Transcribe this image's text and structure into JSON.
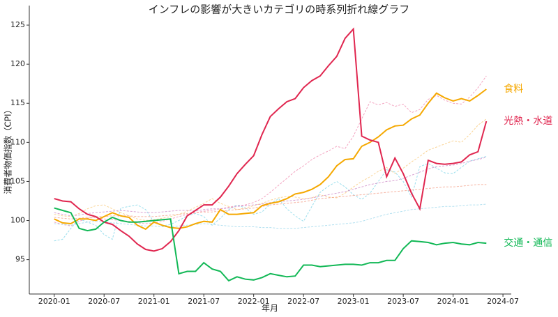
{
  "chart_data": {
    "type": "line",
    "title": "インフレの影響が大きいカテゴリの時系列折れ線グラフ",
    "x_label": "年月",
    "y_label": "消費者物価指数（CPI）",
    "x": [
      "2020-01",
      "2020-02",
      "2020-03",
      "2020-04",
      "2020-05",
      "2020-06",
      "2020-07",
      "2020-08",
      "2020-09",
      "2020-10",
      "2020-11",
      "2020-12",
      "2021-01",
      "2021-02",
      "2021-03",
      "2021-04",
      "2021-05",
      "2021-06",
      "2021-07",
      "2021-08",
      "2021-09",
      "2021-10",
      "2021-11",
      "2021-12",
      "2022-01",
      "2022-02",
      "2022-03",
      "2022-04",
      "2022-05",
      "2022-06",
      "2022-07",
      "2022-08",
      "2022-09",
      "2022-10",
      "2022-11",
      "2022-12",
      "2023-01",
      "2023-02",
      "2023-03",
      "2023-04",
      "2023-05",
      "2023-06",
      "2023-07",
      "2023-08",
      "2023-09",
      "2023-10",
      "2023-11",
      "2023-12",
      "2024-01",
      "2024-02",
      "2024-03",
      "2024-04",
      "2024-05"
    ],
    "xlim": [
      "2019-10",
      "2024-08"
    ],
    "xticks": [
      "2020-01",
      "2020-07",
      "2021-01",
      "2021-07",
      "2022-01",
      "2022-07",
      "2023-01",
      "2023-07",
      "2024-01",
      "2024-07"
    ],
    "ylim": [
      90.6,
      127.5
    ],
    "yticks": [
      95,
      100,
      105,
      110,
      115,
      120,
      125
    ],
    "series": [
      {
        "color": "#f08cb0",
        "style": "dashed",
        "values": [
          99.8,
          99.5,
          99.3,
          99.9,
          100.3,
          100.4,
          100.2,
          100.1,
          100.0,
          99.9,
          99.7,
          99.6,
          99.7,
          99.9,
          100.2,
          100.5,
          100.8,
          101.0,
          101.2,
          101.3,
          101.5,
          101.7,
          101.9,
          102.0,
          102.3,
          102.8,
          103.6,
          104.5,
          105.4,
          106.3,
          107.0,
          107.8,
          108.4,
          108.9,
          109.5,
          109.2,
          110.8,
          113.0,
          115.2,
          114.8,
          115.1,
          114.6,
          114.9,
          113.8,
          114.2,
          115.5,
          116.0,
          115.4,
          115.0,
          114.9,
          115.8,
          117.0,
          118.5
        ]
      },
      {
        "color": "#f9c97a",
        "style": "dashed",
        "values": [
          100.8,
          100.6,
          100.5,
          100.9,
          101.5,
          101.9,
          102.0,
          101.5,
          101.0,
          100.6,
          100.2,
          100.0,
          100.1,
          100.3,
          100.5,
          100.8,
          101.2,
          101.7,
          102.2,
          102.8,
          102.2,
          101.8,
          101.4,
          101.6,
          101.9,
          102.2,
          102.6,
          102.9,
          103.1,
          103.0,
          102.8,
          102.9,
          103.3,
          103.0,
          102.9,
          103.5,
          104.3,
          105.0,
          105.6,
          106.3,
          106.8,
          106.0,
          106.7,
          107.5,
          108.2,
          109.0,
          109.4,
          109.8,
          110.2,
          110.0,
          111.0,
          112.2,
          113.0
        ]
      },
      {
        "color": "#7fd6e8",
        "style": "dashed",
        "values": [
          97.4,
          97.6,
          99.0,
          100.2,
          99.8,
          99.4,
          98.2,
          97.6,
          101.6,
          101.8,
          102.0,
          101.4,
          99.8,
          99.3,
          99.5,
          100.0,
          100.6,
          100.9,
          100.5,
          99.4,
          100.3,
          101.4,
          102.0,
          101.6,
          100.8,
          101.1,
          102.1,
          102.8,
          101.5,
          100.6,
          99.9,
          101.8,
          103.6,
          104.4,
          105.0,
          104.3,
          103.3,
          102.7,
          103.5,
          105.0,
          106.5,
          106.2,
          105.0,
          103.0,
          106.9,
          107.3,
          106.7,
          106.1,
          106.0,
          106.8,
          107.6,
          107.9,
          108.2
        ]
      },
      {
        "color": "#d08cc8",
        "style": "dashed",
        "values": [
          101.0,
          100.8,
          100.6,
          100.7,
          100.9,
          101.0,
          101.1,
          101.2,
          101.3,
          101.2,
          101.1,
          101.0,
          101.0,
          101.1,
          101.2,
          101.3,
          101.3,
          101.2,
          101.4,
          101.5,
          101.5,
          101.6,
          101.8,
          101.9,
          102.0,
          102.1,
          102.3,
          102.4,
          102.5,
          102.6,
          102.7,
          102.9,
          103.1,
          103.3,
          103.5,
          103.7,
          104.0,
          104.3,
          104.6,
          104.8,
          105.0,
          105.1,
          105.4,
          105.8,
          106.2,
          106.6,
          106.9,
          107.0,
          107.1,
          107.3,
          107.6,
          107.8,
          108.1
        ]
      },
      {
        "color": "#f4a08a",
        "style": "dashed",
        "values": [
          100.4,
          100.3,
          100.2,
          100.3,
          100.4,
          100.5,
          100.5,
          100.6,
          100.6,
          100.6,
          100.5,
          100.5,
          100.5,
          100.6,
          100.7,
          100.8,
          100.9,
          101.0,
          101.1,
          101.1,
          101.2,
          101.3,
          101.4,
          101.5,
          101.6,
          101.8,
          102.0,
          102.1,
          102.2,
          102.3,
          102.4,
          102.6,
          102.8,
          102.9,
          103.0,
          103.1,
          103.2,
          103.3,
          103.4,
          103.5,
          103.6,
          103.7,
          103.8,
          103.9,
          104.0,
          104.1,
          104.2,
          104.3,
          104.3,
          104.4,
          104.5,
          104.6,
          104.6
        ]
      },
      {
        "color": "#9fd8ec",
        "style": "dashed",
        "values": [
          99.6,
          99.5,
          99.4,
          99.6,
          99.8,
          99.9,
          99.8,
          99.7,
          99.6,
          99.5,
          99.4,
          99.3,
          99.3,
          99.2,
          99.2,
          99.3,
          99.4,
          99.5,
          99.6,
          99.5,
          99.4,
          99.3,
          99.2,
          99.2,
          99.2,
          99.1,
          99.1,
          99.0,
          99.0,
          99.0,
          99.1,
          99.2,
          99.3,
          99.4,
          99.5,
          99.6,
          99.7,
          99.9,
          100.2,
          100.5,
          100.8,
          101.0,
          101.2,
          101.4,
          101.5,
          101.6,
          101.7,
          101.8,
          101.8,
          101.9,
          102.0,
          102.0,
          102.1
        ]
      },
      {
        "name": "食料",
        "color": "#f5a800",
        "style": "solid",
        "values": [
          100.2,
          99.7,
          99.6,
          100.2,
          100.2,
          100.0,
          100.5,
          101.0,
          100.6,
          100.4,
          99.4,
          98.9,
          99.8,
          99.4,
          99.1,
          99.0,
          99.2,
          99.6,
          99.9,
          99.8,
          101.4,
          100.8,
          100.8,
          100.9,
          101.0,
          101.9,
          102.2,
          102.4,
          102.8,
          103.4,
          103.6,
          104.0,
          104.6,
          105.6,
          107.0,
          107.8,
          107.9,
          109.5,
          110.0,
          110.7,
          111.6,
          112.1,
          112.2,
          113.0,
          113.5,
          115.0,
          116.3,
          115.7,
          115.3,
          115.6,
          115.3,
          116.0,
          116.8
        ]
      },
      {
        "name": "光熱・水道",
        "color": "#e0264f",
        "style": "solid",
        "values": [
          102.8,
          102.5,
          102.4,
          101.5,
          100.8,
          100.5,
          99.8,
          99.5,
          98.7,
          98.0,
          97.0,
          96.3,
          96.1,
          96.4,
          97.3,
          98.7,
          100.6,
          101.3,
          102.0,
          102.0,
          103.0,
          104.4,
          106.0,
          107.2,
          108.3,
          111.0,
          113.3,
          114.3,
          115.2,
          115.6,
          117.0,
          117.9,
          118.5,
          119.8,
          121.0,
          123.3,
          124.5,
          110.8,
          110.3,
          110.0,
          105.6,
          108.0,
          106.0,
          103.5,
          101.5,
          107.7,
          107.3,
          107.2,
          107.3,
          107.5,
          108.4,
          108.8,
          112.7
        ]
      },
      {
        "name": "交通・通信",
        "color": "#12b856",
        "style": "solid",
        "values": [
          101.6,
          101.3,
          101.0,
          99.0,
          98.7,
          98.9,
          99.8,
          100.4,
          100.0,
          99.8,
          99.8,
          99.9,
          100.0,
          100.1,
          100.2,
          93.2,
          93.5,
          93.5,
          94.6,
          93.8,
          93.5,
          92.3,
          92.8,
          92.5,
          92.4,
          92.7,
          93.2,
          93.0,
          92.8,
          92.9,
          94.3,
          94.3,
          94.1,
          94.2,
          94.3,
          94.4,
          94.4,
          94.3,
          94.6,
          94.6,
          94.9,
          94.9,
          96.4,
          97.4,
          97.3,
          97.2,
          96.9,
          97.1,
          97.2,
          97.0,
          96.9,
          97.2,
          97.1
        ]
      }
    ]
  }
}
